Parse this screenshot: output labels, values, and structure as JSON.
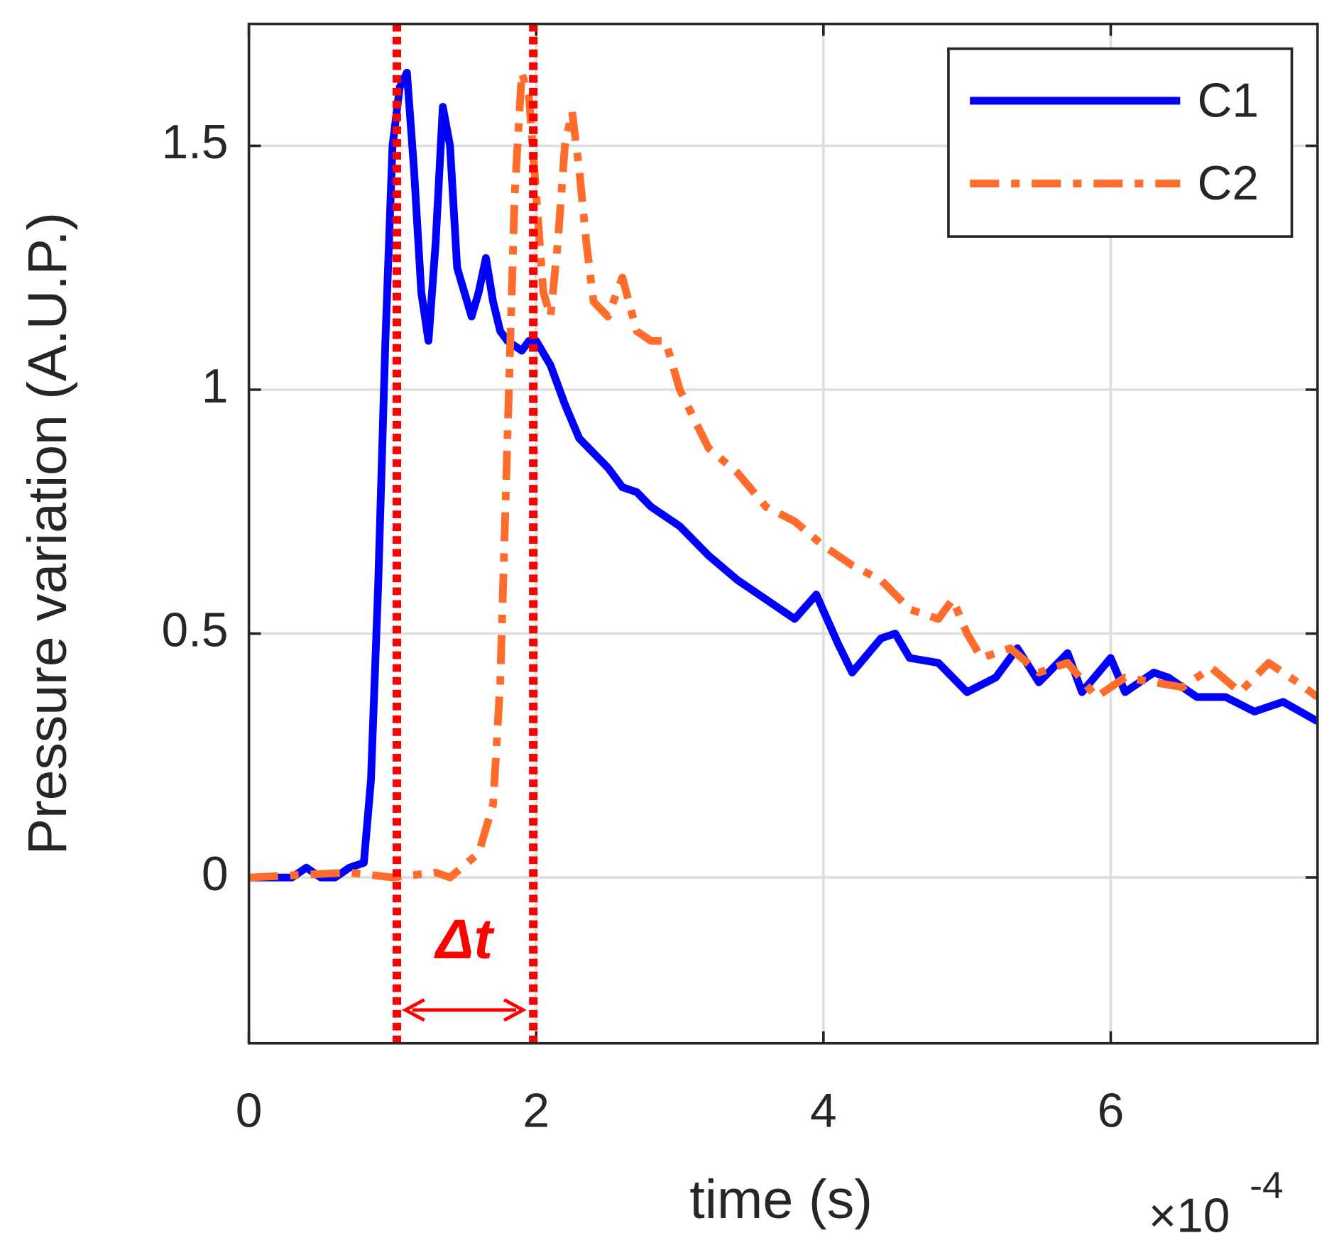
{
  "chart_data": {
    "type": "line",
    "xlabel": "time (s)",
    "ylabel": "Pressure variation (A.U.P.)",
    "x_multiplier": {
      "base": "×10",
      "exponent": "-4"
    },
    "xlim": [
      0,
      7.44
    ],
    "ylim": [
      -0.34,
      1.75
    ],
    "xticks": [
      0,
      2,
      4,
      6
    ],
    "yticks": [
      0,
      0.5,
      1,
      1.5
    ],
    "grid": true,
    "legend": "upper right",
    "series": [
      {
        "name": "C1",
        "color": "#0000ff",
        "style": "solid",
        "x": [
          0,
          0.3,
          0.4,
          0.5,
          0.6,
          0.7,
          0.8,
          0.85,
          0.9,
          0.95,
          1.0,
          1.05,
          1.1,
          1.15,
          1.2,
          1.25,
          1.3,
          1.35,
          1.4,
          1.45,
          1.5,
          1.55,
          1.6,
          1.65,
          1.7,
          1.75,
          1.8,
          1.9,
          1.95,
          2.0,
          2.1,
          2.2,
          2.3,
          2.4,
          2.5,
          2.6,
          2.7,
          2.8,
          3.0,
          3.2,
          3.4,
          3.6,
          3.8,
          3.95,
          4.1,
          4.2,
          4.4,
          4.5,
          4.6,
          4.8,
          5.0,
          5.2,
          5.35,
          5.5,
          5.7,
          5.8,
          6.0,
          6.1,
          6.3,
          6.4,
          6.6,
          6.8,
          7.0,
          7.2,
          7.44
        ],
        "values": [
          0,
          0,
          0.02,
          0,
          0,
          0.02,
          0.03,
          0.2,
          0.6,
          1.1,
          1.5,
          1.62,
          1.65,
          1.45,
          1.2,
          1.1,
          1.3,
          1.58,
          1.5,
          1.25,
          1.2,
          1.15,
          1.2,
          1.27,
          1.18,
          1.12,
          1.1,
          1.08,
          1.1,
          1.1,
          1.05,
          0.97,
          0.9,
          0.87,
          0.84,
          0.8,
          0.79,
          0.76,
          0.72,
          0.66,
          0.61,
          0.57,
          0.53,
          0.58,
          0.48,
          0.42,
          0.49,
          0.5,
          0.45,
          0.44,
          0.38,
          0.41,
          0.47,
          0.4,
          0.46,
          0.38,
          0.45,
          0.38,
          0.42,
          0.41,
          0.37,
          0.37,
          0.34,
          0.36,
          0.32
        ]
      },
      {
        "name": "C2",
        "color": "#ff6c2c",
        "style": "dashdot",
        "x": [
          0,
          0.7,
          1.0,
          1.3,
          1.4,
          1.6,
          1.7,
          1.75,
          1.8,
          1.85,
          1.9,
          1.95,
          2.0,
          2.05,
          2.1,
          2.15,
          2.2,
          2.25,
          2.3,
          2.35,
          2.4,
          2.5,
          2.6,
          2.7,
          2.8,
          2.9,
          3.0,
          3.2,
          3.4,
          3.6,
          3.8,
          4.0,
          4.2,
          4.4,
          4.6,
          4.8,
          4.9,
          5.0,
          5.1,
          5.3,
          5.5,
          5.7,
          5.9,
          6.1,
          6.3,
          6.5,
          6.7,
          6.9,
          7.1,
          7.3,
          7.44
        ],
        "values": [
          0,
          0.01,
          0,
          0.01,
          0,
          0.05,
          0.15,
          0.4,
          0.9,
          1.4,
          1.65,
          1.6,
          1.4,
          1.2,
          1.15,
          1.3,
          1.5,
          1.57,
          1.45,
          1.3,
          1.18,
          1.15,
          1.23,
          1.12,
          1.1,
          1.1,
          1.0,
          0.88,
          0.83,
          0.76,
          0.73,
          0.68,
          0.64,
          0.61,
          0.55,
          0.53,
          0.57,
          0.5,
          0.45,
          0.47,
          0.42,
          0.44,
          0.37,
          0.41,
          0.4,
          0.39,
          0.43,
          0.38,
          0.44,
          0.4,
          0.37
        ]
      }
    ],
    "vlines": [
      1.03,
      1.98
    ],
    "vline_color": "#ff0000",
    "annotation": "Δt"
  }
}
